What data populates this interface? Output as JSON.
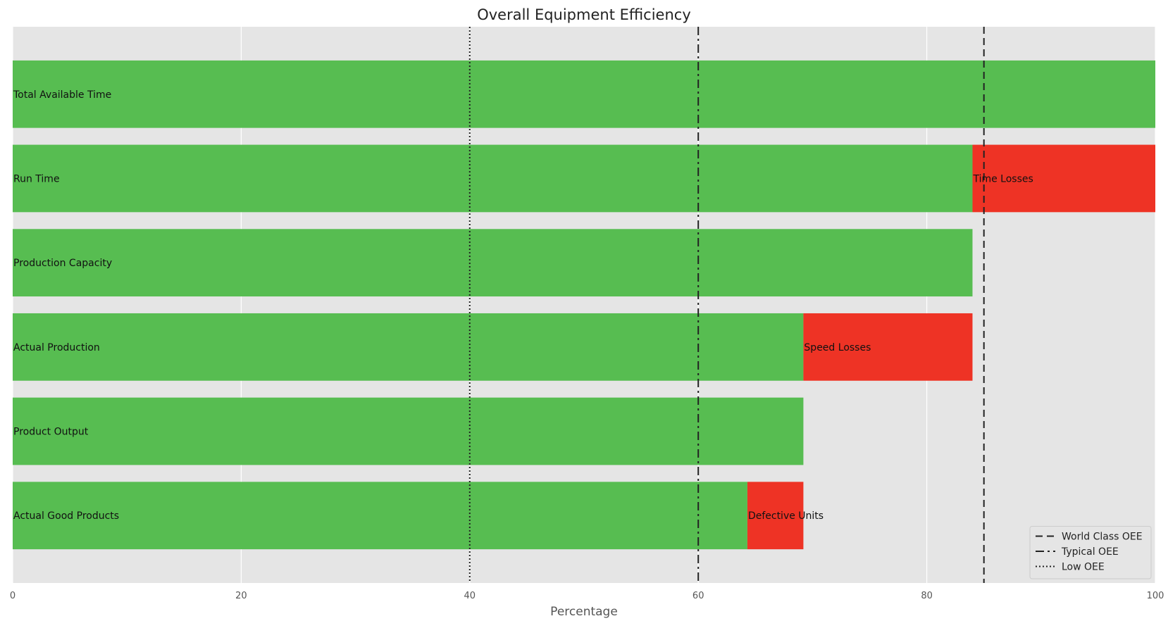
{
  "chart_data": {
    "type": "bar",
    "orientation": "horizontal",
    "title": "Overall Equipment Efficiency",
    "xlabel": "Percentage",
    "ylabel": "",
    "xlim": [
      0,
      100
    ],
    "x_ticks": [
      "0",
      "20",
      "40",
      "60",
      "80",
      "100"
    ],
    "grid": true,
    "colors": {
      "good": "#57bd51",
      "loss": "#ee3325",
      "plot_bg": "#e5e5e5",
      "grid": "#ffffff"
    },
    "bars": [
      {
        "label": "Total Available Time",
        "value": 100,
        "loss_value": null,
        "loss_label": ""
      },
      {
        "label": "Run Time",
        "value": 84,
        "loss_value": 16,
        "loss_label": "Time Losses"
      },
      {
        "label": "Production Capacity",
        "value": 84,
        "loss_value": null,
        "loss_label": ""
      },
      {
        "label": "Actual Production",
        "value": 69.2,
        "loss_value": 14.8,
        "loss_label": "Speed Losses"
      },
      {
        "label": "Product Output",
        "value": 69.2,
        "loss_value": null,
        "loss_label": ""
      },
      {
        "label": "Actual Good Products",
        "value": 64.3,
        "loss_value": 4.9,
        "loss_label": "Defective Units"
      }
    ],
    "reference_lines": [
      {
        "name": "World Class OEE",
        "value": 85,
        "style": "dashed"
      },
      {
        "name": "Typical OEE",
        "value": 60,
        "style": "dashdot"
      },
      {
        "name": "Low OEE",
        "value": 40,
        "style": "dotted"
      }
    ],
    "legend_position": "bottom-right"
  }
}
